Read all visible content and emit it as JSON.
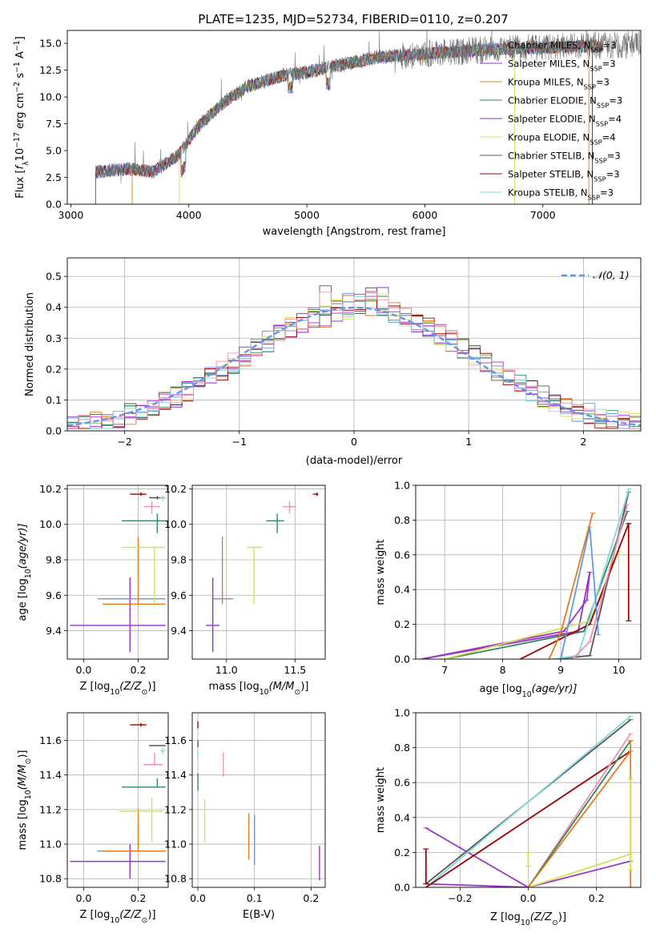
{
  "figure_title": "PLATE=1235, MJD=52734, FIBERID=0110, z=0.207",
  "colors": {
    "Chabrier MILES": "#6495ed",
    "Salpeter MILES": "#9932cc",
    "Kroupa MILES": "#e07b1f",
    "Chabrier ELODIE": "#2e8b57",
    "Salpeter ELODIE": "#9b30c8",
    "Kroupa ELODIE": "#d4e157",
    "Chabrier STELIB": "#555555",
    "Salpeter STELIB": "#a00000",
    "Kroupa STELIB": "#80d8e0",
    "Pink": "#f48fb1",
    "Normal": "#6495ed"
  },
  "chart_data": [
    {
      "id": "spectrum",
      "type": "line",
      "title": "PLATE=1235, MJD=52734, FIBERID=0110, z=0.207",
      "xlabel": "wavelength [Angstrom, rest frame]",
      "ylabel_parts": [
        "Flux [",
        "f",
        "λ",
        "10",
        "−17",
        " erg cm",
        "−2",
        " s",
        "−1",
        " A",
        "−1",
        "]"
      ],
      "xlim": [
        2970,
        7830
      ],
      "ylim": [
        0,
        16.2
      ],
      "xticks": [
        "3000",
        "4000",
        "5000",
        "6000",
        "7000"
      ],
      "xtick_values": [
        3000,
        4000,
        5000,
        6000,
        7000
      ],
      "yticks": [
        "0.0",
        "2.5",
        "5.0",
        "7.5",
        "10.0",
        "12.5",
        "15.0"
      ],
      "ytick_values": [
        0,
        2.5,
        5,
        7.5,
        10,
        12.5,
        15
      ],
      "data_range": [
        3210,
        7830
      ],
      "legend_position": "right",
      "legend": [
        {
          "base": "Chabrier MILES, N",
          "sub": "SSP",
          "tail": "=3",
          "color": "#6495ed"
        },
        {
          "base": "Salpeter MILES, N",
          "sub": "SSP",
          "tail": "=3",
          "color": "#9932cc"
        },
        {
          "base": "Kroupa MILES, N",
          "sub": "SSP",
          "tail": "=3",
          "color": "#e07b1f"
        },
        {
          "base": "Chabrier ELODIE, N",
          "sub": "SSP",
          "tail": "=3",
          "color": "#2e8b57"
        },
        {
          "base": "Salpeter ELODIE, N",
          "sub": "SSP",
          "tail": "=4",
          "color": "#9b30c8"
        },
        {
          "base": "Kroupa ELODIE, N",
          "sub": "SSP",
          "tail": "=4",
          "color": "#d4e157"
        },
        {
          "base": "Chabrier STELIB, N",
          "sub": "SSP",
          "tail": "=3",
          "color": "#555555"
        },
        {
          "base": "Salpeter STELIB, N",
          "sub": "SSP",
          "tail": "=3",
          "color": "#a00000"
        },
        {
          "base": "Kroupa STELIB, N",
          "sub": "SSP",
          "tail": "=3",
          "color": "#80d8e0"
        }
      ],
      "continuum_points": [
        [
          3210,
          3.0
        ],
        [
          3500,
          3.3
        ],
        [
          3700,
          3.0
        ],
        [
          3900,
          4.5
        ],
        [
          4100,
          7.5
        ],
        [
          4300,
          9.5
        ],
        [
          4500,
          11.0
        ],
        [
          4800,
          12.0
        ],
        [
          5000,
          12.3
        ],
        [
          5300,
          13.0
        ],
        [
          5600,
          13.7
        ],
        [
          6000,
          14.0
        ],
        [
          6500,
          14.4
        ],
        [
          7000,
          14.6
        ],
        [
          7830,
          14.9
        ]
      ]
    },
    {
      "id": "residuals",
      "type": "step-histogram",
      "xlabel": "(data-model)/error",
      "ylabel": "Normed distribution",
      "xlim": [
        -2.5,
        2.5
      ],
      "ylim": [
        0,
        0.56
      ],
      "xticks": [
        "−2",
        "−1",
        "0",
        "1",
        "2"
      ],
      "xtick_values": [
        -2,
        -1,
        0,
        1,
        2
      ],
      "yticks": [
        "0.0",
        "0.1",
        "0.2",
        "0.3",
        "0.4",
        "0.5"
      ],
      "ytick_values": [
        0,
        0.1,
        0.2,
        0.3,
        0.4,
        0.5
      ],
      "bin_width": 0.1,
      "legend_label": "𝒩(0, 1)",
      "legend_position": "top-right",
      "normal_curve": {
        "mean": 0,
        "sigma": 1
      }
    },
    {
      "id": "age_vs_Z",
      "type": "errorbar",
      "xlabel_parts": [
        "Z [log",
        "10",
        "(Z/Z",
        "⊙",
        ")]"
      ],
      "ylabel_parts": [
        "age  [log",
        "10",
        "(age/yr)]"
      ],
      "xlim": [
        -0.06,
        0.31
      ],
      "ylim": [
        9.24,
        10.22
      ],
      "xticks": [
        "0.0",
        "0.2"
      ],
      "xtick_values": [
        0.0,
        0.2
      ],
      "yticks": [
        "9.4",
        "9.6",
        "9.8",
        "10.0",
        "10.2"
      ],
      "ytick_values": [
        9.4,
        9.6,
        9.8,
        10.0,
        10.2
      ],
      "points": [
        {
          "x": 0.17,
          "y": 9.43,
          "xerr": [
            0.22,
            0.13
          ],
          "yerr": [
            0.15,
            0.27
          ],
          "color": "#9932cc"
        },
        {
          "x": 0.2,
          "y": 9.58,
          "xerr": [
            0.15,
            0.1
          ],
          "yerr": [
            0.0,
            0.0
          ],
          "color": "#6495ed"
        },
        {
          "x": 0.2,
          "y": 9.55,
          "xerr": [
            0.13,
            0.1
          ],
          "yerr": [
            0.0,
            0.38
          ],
          "color": "#e07b1f"
        },
        {
          "x": 0.26,
          "y": 9.87,
          "xerr": [
            0.12,
            0.04
          ],
          "yerr": [
            0.32,
            0.0
          ],
          "color": "#d4e157"
        },
        {
          "x": 0.27,
          "y": 10.02,
          "xerr": [
            0.13,
            0.03
          ],
          "yerr": [
            0.07,
            0.04
          ],
          "color": "#2e8b57"
        },
        {
          "x": 0.27,
          "y": 10.15,
          "xerr": [
            0.03,
            0.03
          ],
          "yerr": [
            0.01,
            0.01
          ],
          "color": "#555555"
        },
        {
          "x": 0.25,
          "y": 10.1,
          "xerr": [
            0.03,
            0.03
          ],
          "yerr": [
            0.04,
            0.03
          ],
          "color": "#f48fb1"
        },
        {
          "x": 0.29,
          "y": 10.15,
          "xerr": [
            0.01,
            0.01
          ],
          "yerr": [
            0.02,
            0.01
          ],
          "color": "#80d8e0"
        },
        {
          "x": 0.21,
          "y": 10.17,
          "xerr": [
            0.04,
            0.02
          ],
          "yerr": [
            0.01,
            0.01
          ],
          "color": "#a00000"
        }
      ]
    },
    {
      "id": "age_vs_mass",
      "type": "errorbar",
      "xlabel_parts": [
        "mass [log",
        "10",
        "(M/M",
        "⊙",
        ")]"
      ],
      "xlim": [
        10.75,
        11.72
      ],
      "ylim": [
        9.24,
        10.22
      ],
      "xticks": [
        "11.0",
        "11.5"
      ],
      "xtick_values": [
        11.0,
        11.5
      ],
      "yticks": [
        "9.4",
        "9.6",
        "9.8",
        "10.0",
        "10.2"
      ],
      "ytick_values": [
        9.4,
        9.6,
        9.8,
        10.0,
        10.2
      ],
      "points": [
        {
          "x": 10.9,
          "y": 9.43,
          "xerr": [
            0.05,
            0.05
          ],
          "yerr": [
            0.15,
            0.27
          ],
          "color": "#9932cc"
        },
        {
          "x": 10.95,
          "y": 9.58,
          "xerr": [
            0.05,
            0.1
          ],
          "yerr": [
            0.0,
            0.0
          ],
          "color": "#6495ed"
        },
        {
          "x": 10.97,
          "y": 9.55,
          "xerr": [
            0.0,
            0.0
          ],
          "yerr": [
            0.0,
            0.38
          ],
          "color": "#e07b1f"
        },
        {
          "x": 11.2,
          "y": 9.87,
          "xerr": [
            0.05,
            0.06
          ],
          "yerr": [
            0.32,
            0.0
          ],
          "color": "#d4e157"
        },
        {
          "x": 11.37,
          "y": 10.02,
          "xerr": [
            0.08,
            0.05
          ],
          "yerr": [
            0.07,
            0.04
          ],
          "color": "#2e8b57"
        },
        {
          "x": 11.46,
          "y": 10.1,
          "xerr": [
            0.05,
            0.05
          ],
          "yerr": [
            0.04,
            0.03
          ],
          "color": "#f48fb1"
        },
        {
          "x": 11.66,
          "y": 10.17,
          "xerr": [
            0.03,
            0.01
          ],
          "yerr": [
            0.01,
            0.01
          ],
          "color": "#a00000"
        }
      ]
    },
    {
      "id": "weight_vs_age",
      "type": "line",
      "xlabel_parts": [
        "age  [log",
        "10",
        "(age/yr)]"
      ],
      "ylabel": "mass weight",
      "xlim": [
        6.5,
        10.38
      ],
      "ylim": [
        0,
        1.0
      ],
      "xticks": [
        "7",
        "8",
        "9",
        "10"
      ],
      "xtick_values": [
        7,
        8,
        9,
        10
      ],
      "yticks": [
        "0.0",
        "0.2",
        "0.4",
        "0.6",
        "0.8",
        "1.0"
      ],
      "ytick_values": [
        0,
        0.2,
        0.4,
        0.6,
        0.8,
        1.0
      ],
      "series": [
        {
          "color": "#9932cc",
          "x": [
            6.6,
            9.05,
            9.45,
            9.5
          ],
          "y": [
            0.0,
            0.16,
            0.34,
            0.5
          ]
        },
        {
          "color": "#9b30c8",
          "x": [
            6.6,
            9.3,
            9.5
          ],
          "y": [
            0.0,
            0.16,
            0.5
          ]
        },
        {
          "color": "#2e8b57",
          "x": [
            7.0,
            9.4,
            10.15
          ],
          "y": [
            0.0,
            0.16,
            0.85
          ]
        },
        {
          "color": "#d4e157",
          "x": [
            7.0,
            9.5,
            10.0
          ],
          "y": [
            0.0,
            0.22,
            0.62
          ]
        },
        {
          "color": "#555555",
          "x": [
            8.9,
            9.5,
            10.17
          ],
          "y": [
            0.0,
            0.02,
            0.96
          ]
        },
        {
          "color": "#a00000",
          "x": [
            8.3,
            9.5,
            10.17
          ],
          "y": [
            0.0,
            0.2,
            0.78
          ]
        },
        {
          "color": "#80d8e0",
          "x": [
            8.85,
            9.3,
            10.18
          ],
          "y": [
            0.0,
            0.02,
            0.98
          ]
        },
        {
          "color": "#f48fb1",
          "x": [
            9.2,
            9.5,
            10.15
          ],
          "y": [
            0.0,
            0.1,
            0.89
          ]
        },
        {
          "color": "#6495ed",
          "x": [
            9.0,
            9.5,
            9.65
          ],
          "y": [
            0.0,
            0.76,
            0.14
          ]
        },
        {
          "color": "#e07b1f",
          "x": [
            8.8,
            9.0,
            9.55
          ],
          "y": [
            0.0,
            0.15,
            0.84
          ]
        }
      ],
      "errorbars": [
        {
          "x": 10.17,
          "y1": 0.22,
          "y2": 0.78,
          "color": "#a00000"
        }
      ]
    },
    {
      "id": "mass_vs_Z",
      "type": "errorbar",
      "xlabel_parts": [
        "Z [log",
        "10",
        "(Z/Z",
        "⊙",
        ")]"
      ],
      "ylabel_parts": [
        "mass [log",
        "10",
        "(M/M",
        "⊙",
        ")]"
      ],
      "xlim": [
        -0.06,
        0.31
      ],
      "ylim": [
        10.75,
        11.76
      ],
      "xticks": [
        "0.0",
        "0.2"
      ],
      "xtick_values": [
        0.0,
        0.2
      ],
      "yticks": [
        "10.8",
        "11.0",
        "11.2",
        "11.4",
        "11.6"
      ],
      "ytick_values": [
        10.8,
        11.0,
        11.2,
        11.4,
        11.6
      ],
      "points": [
        {
          "x": 0.17,
          "y": 10.9,
          "xerr": [
            0.22,
            0.13
          ],
          "yerr": [
            0.1,
            0.1
          ],
          "color": "#9932cc"
        },
        {
          "x": 0.2,
          "y": 10.96,
          "xerr": [
            0.15,
            0.1
          ],
          "yerr": [
            0.0,
            0.0
          ],
          "color": "#6495ed"
        },
        {
          "x": 0.2,
          "y": 10.96,
          "xerr": [
            0.13,
            0.1
          ],
          "yerr": [
            0.0,
            0.24
          ],
          "color": "#e07b1f"
        },
        {
          "x": 0.25,
          "y": 11.19,
          "xerr": [
            0.12,
            0.04
          ],
          "yerr": [
            0.18,
            0.08
          ],
          "color": "#d4e157"
        },
        {
          "x": 0.27,
          "y": 11.33,
          "xerr": [
            0.13,
            0.03
          ],
          "yerr": [
            0.0,
            0.05
          ],
          "color": "#2e8b57"
        },
        {
          "x": 0.27,
          "y": 11.57,
          "xerr": [
            0.03,
            0.03
          ],
          "yerr": [
            0.0,
            0.0
          ],
          "color": "#555555"
        },
        {
          "x": 0.26,
          "y": 11.46,
          "xerr": [
            0.04,
            0.03
          ],
          "yerr": [
            0.0,
            0.07
          ],
          "color": "#f48fb1"
        },
        {
          "x": 0.29,
          "y": 11.54,
          "xerr": [
            0.01,
            0.01
          ],
          "yerr": [
            0.02,
            0.02
          ],
          "color": "#80d8e0"
        },
        {
          "x": 0.21,
          "y": 11.69,
          "xerr": [
            0.04,
            0.02
          ],
          "yerr": [
            0.01,
            0.01
          ],
          "color": "#a00000"
        }
      ]
    },
    {
      "id": "mass_vs_ebv",
      "type": "errorbar",
      "xlabel": "E(B-V)",
      "xlim": [
        -0.01,
        0.225
      ],
      "ylim": [
        10.75,
        11.76
      ],
      "xticks": [
        "0.0",
        "0.1",
        "0.2"
      ],
      "xtick_values": [
        0.0,
        0.1,
        0.2
      ],
      "yticks": [
        "10.8",
        "11.0",
        "11.2",
        "11.4",
        "11.6"
      ],
      "ytick_values": [
        10.8,
        11.0,
        11.2,
        11.4,
        11.6
      ],
      "points": [
        {
          "x": 0.0,
          "y": 11.69,
          "yerr": [
            0.02,
            0.02
          ],
          "color": "#a00000"
        },
        {
          "x": 0.0,
          "y": 11.58,
          "yerr": [
            0.02,
            0.02
          ],
          "color": "#555555"
        },
        {
          "x": 0.0,
          "y": 11.52,
          "yerr": [
            0.02,
            0.02
          ],
          "color": "#80d8e0"
        },
        {
          "x": 0.0,
          "y": 11.36,
          "yerr": [
            0.05,
            0.05
          ],
          "color": "#2e8b57"
        },
        {
          "x": 0.012,
          "y": 11.13,
          "yerr": [
            0.12,
            0.13
          ],
          "color": "#d4e157"
        },
        {
          "x": 0.045,
          "y": 11.46,
          "yerr": [
            0.07,
            0.07
          ],
          "color": "#f48fb1"
        },
        {
          "x": 0.09,
          "y": 11.05,
          "yerr": [
            0.14,
            0.13
          ],
          "color": "#e07b1f"
        },
        {
          "x": 0.1,
          "y": 11.03,
          "yerr": [
            0.15,
            0.14
          ],
          "color": "#6495ed"
        },
        {
          "x": 0.215,
          "y": 10.89,
          "yerr": [
            0.1,
            0.1
          ],
          "color": "#9932cc"
        }
      ]
    },
    {
      "id": "weight_vs_Z",
      "type": "line",
      "xlabel_parts": [
        "Z [log",
        "10",
        "(Z/Z",
        "⊙",
        ")]"
      ],
      "ylabel": "mass weight",
      "xlim": [
        -0.33,
        0.33
      ],
      "ylim": [
        0,
        1.0
      ],
      "xticks": [
        "−0.2",
        "0.0",
        "0.2"
      ],
      "xtick_values": [
        -0.2,
        0.0,
        0.2
      ],
      "yticks": [
        "0.0",
        "0.2",
        "0.4",
        "0.6",
        "0.8",
        "1.0"
      ],
      "ytick_values": [
        0,
        0.2,
        0.4,
        0.6,
        0.8,
        1.0
      ],
      "series": [
        {
          "color": "#9932cc",
          "x": [
            -0.3,
            0.0,
            0.3
          ],
          "y": [
            0.34,
            0.0,
            0.15
          ]
        },
        {
          "color": "#9b30c8",
          "x": [
            -0.3,
            0.0
          ],
          "y": [
            0.02,
            0.0
          ]
        },
        {
          "color": "#555555",
          "x": [
            -0.3,
            0.3
          ],
          "y": [
            0.02,
            0.96
          ]
        },
        {
          "color": "#80d8e0",
          "x": [
            -0.3,
            0.3
          ],
          "y": [
            0.0,
            0.98
          ]
        },
        {
          "color": "#a00000",
          "x": [
            -0.3,
            0.3
          ],
          "y": [
            0.0,
            0.78
          ]
        },
        {
          "color": "#f48fb1",
          "x": [
            0.0,
            0.3
          ],
          "y": [
            0.0,
            0.88
          ]
        },
        {
          "color": "#2e8b57",
          "x": [
            0.0,
            0.3
          ],
          "y": [
            0.0,
            0.84
          ]
        },
        {
          "color": "#d4e157",
          "x": [
            0.0,
            0.3
          ],
          "y": [
            0.0,
            0.19
          ]
        },
        {
          "color": "#e07b1f",
          "x": [
            0.0,
            0.3
          ],
          "y": [
            0.0,
            0.78
          ]
        }
      ],
      "errorbars": [
        {
          "x": -0.3,
          "y1": 0.02,
          "y2": 0.22,
          "color": "#a00000"
        },
        {
          "x": 0.0,
          "y1": 0.12,
          "y2": 0.2,
          "color": "#d4e157"
        },
        {
          "x": 0.3,
          "y1": 0.0,
          "y2": 0.84,
          "color": "#e07b1f"
        },
        {
          "x": 0.3,
          "y1": 0.1,
          "y2": 0.62,
          "color": "#d4e157"
        }
      ]
    }
  ]
}
